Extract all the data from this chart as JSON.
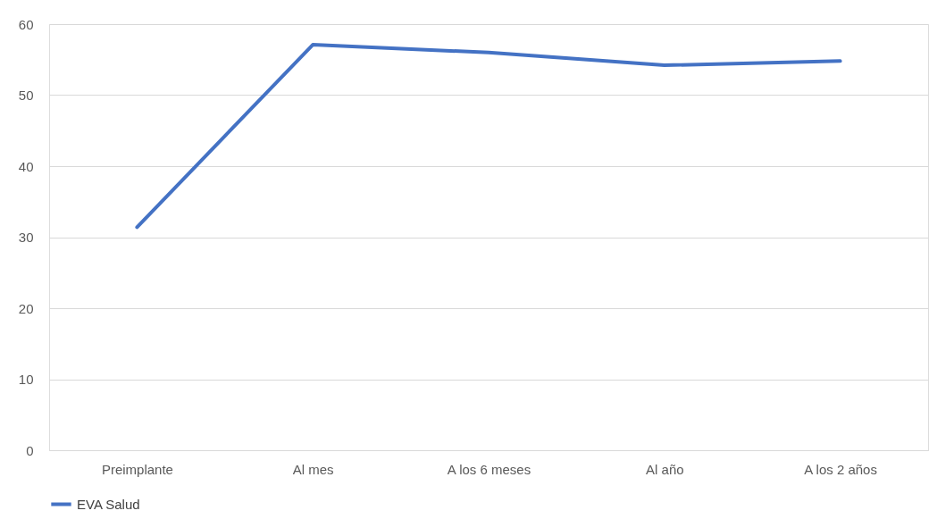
{
  "chart_data": {
    "type": "line",
    "categories": [
      "Preimplante",
      "Al mes",
      "A los 6 meses",
      "Al año",
      "A los 2 años"
    ],
    "series": [
      {
        "name": "EVA Salud",
        "color": "#4472c4",
        "values": [
          31.4,
          57.1,
          56.0,
          54.2,
          54.8
        ]
      }
    ],
    "ylim": [
      0,
      60
    ],
    "yticks": [
      0,
      10,
      20,
      30,
      40,
      50,
      60
    ],
    "grid": "y",
    "legend": "bottom",
    "marker": "none",
    "line_style": "solid"
  }
}
